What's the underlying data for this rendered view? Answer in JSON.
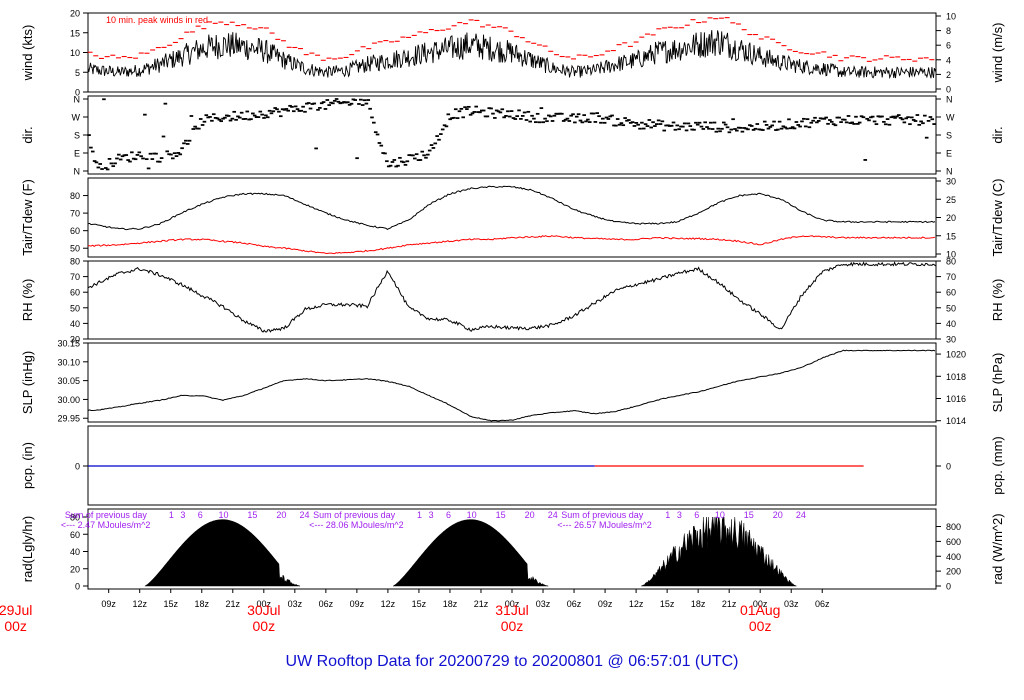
{
  "figure": {
    "title": "UW Rooftop Data for 20200729  to  20200801 @ 06:57:01  (UTC)",
    "title_color": "#1010d0",
    "date_color": "#ff0000",
    "annotation_color": "#a020f0",
    "x_tick_labels": [
      "09z",
      "12z",
      "15z",
      "18z",
      "21z",
      "00z",
      "03z",
      "06z",
      "09z",
      "12z",
      "15z",
      "18z",
      "21z",
      "00z",
      "03z",
      "06z",
      "09z",
      "12z",
      "15z",
      "18z",
      "21z",
      "00z",
      "03z",
      "06z"
    ],
    "date_labels": [
      {
        "day": "29Jul",
        "time": "00z"
      },
      {
        "day": "30Jul",
        "time": "00z"
      },
      {
        "day": "31Jul",
        "time": "00z"
      },
      {
        "day": "01Aug",
        "time": "00z"
      }
    ]
  },
  "chart_data": [
    {
      "type": "line",
      "name": "wind",
      "ylabel": "wind (kts)",
      "ylabel_right": "wind (m/s)",
      "ylim": [
        0,
        20
      ],
      "yticks": [
        0,
        5,
        10,
        15,
        20
      ],
      "yticks_right": [
        "0",
        "2",
        "4",
        "6",
        "8",
        "10"
      ],
      "annotation": "10 min. peak winds in red",
      "series_color": "#000000",
      "peak_color": "#ff0000",
      "x_hours": [
        6,
        8,
        10,
        12,
        14,
        16,
        18,
        20,
        22,
        24,
        26,
        28,
        30,
        32,
        34,
        36,
        38,
        40,
        42,
        44,
        46,
        48,
        50,
        52,
        54,
        56,
        58,
        60,
        62,
        64,
        66,
        68,
        70,
        72,
        74,
        76,
        78,
        80
      ],
      "values": [
        6,
        5.5,
        5,
        5.5,
        7,
        9,
        11,
        12,
        11.5,
        10.5,
        8,
        6,
        5,
        5.5,
        7,
        8,
        9,
        10,
        11,
        12,
        11,
        10,
        8,
        6,
        5,
        5.5,
        7,
        8,
        10,
        11,
        12,
        13,
        11,
        9,
        7.5,
        6.5,
        6,
        5
      ]
    },
    {
      "type": "scatter",
      "name": "dir",
      "ylabel": "dir.",
      "ylabel_right": "dir.",
      "yticks": [
        "N",
        "E",
        "S",
        "W",
        "N"
      ],
      "x_hours": [
        6,
        8,
        10,
        12,
        14,
        16,
        18,
        20,
        22,
        24,
        26,
        28,
        30,
        32,
        34,
        36,
        38,
        40,
        42,
        44,
        46,
        48,
        50,
        52,
        54,
        56,
        58,
        60,
        62,
        64,
        66,
        68,
        70,
        72,
        74,
        76,
        78,
        80
      ],
      "values": [
        340,
        10,
        60,
        80,
        70,
        100,
        250,
        270,
        275,
        290,
        300,
        320,
        330,
        340,
        350,
        30,
        60,
        90,
        280,
        300,
        290,
        285,
        270,
        265,
        260,
        270,
        250,
        240,
        230,
        220,
        225,
        220,
        215,
        220,
        230,
        240,
        250,
        255
      ]
    },
    {
      "type": "line",
      "name": "temperature",
      "ylabel": "Tair/Tdew (F)",
      "ylabel_right": "Tair/Tdew (C)",
      "ylim": [
        45,
        90
      ],
      "yticks": [
        50,
        60,
        70,
        80
      ],
      "yticks_right": [
        "10",
        "15",
        "20",
        "25",
        "30"
      ],
      "x_hours": [
        6,
        8,
        10,
        12,
        14,
        16,
        18,
        20,
        22,
        24,
        26,
        28,
        30,
        32,
        34,
        36,
        38,
        40,
        42,
        44,
        46,
        48,
        50,
        52,
        54,
        56,
        58,
        60,
        62,
        64,
        66,
        68,
        70,
        72,
        74,
        76,
        78,
        80
      ],
      "series": [
        {
          "color": "#000000",
          "values": [
            65,
            63,
            61,
            61,
            64,
            70,
            75,
            79,
            81,
            81,
            80,
            75,
            70,
            66,
            63,
            61,
            66,
            75,
            81,
            84,
            85,
            85,
            83,
            78,
            72,
            68,
            65,
            64,
            64,
            65,
            70,
            76,
            80,
            81,
            78,
            71,
            66,
            65
          ]
        },
        {
          "color": "#ff0000",
          "values": [
            51,
            51.5,
            52,
            53,
            54,
            55,
            55,
            54,
            53,
            51,
            50,
            48.5,
            47,
            47.5,
            48.5,
            50,
            52,
            53,
            54,
            55,
            55,
            56,
            56.5,
            57,
            56,
            55.5,
            55,
            55,
            56,
            55.5,
            55.5,
            55,
            54,
            52,
            55,
            57,
            56.5,
            56
          ]
        }
      ]
    },
    {
      "type": "line",
      "name": "rh",
      "ylabel": "RH (%)",
      "ylabel_right": "RH (%)",
      "ylim": [
        30,
        80
      ],
      "yticks": [
        30,
        40,
        50,
        60,
        70,
        80
      ],
      "x_hours": [
        6,
        8,
        10,
        12,
        14,
        16,
        18,
        20,
        22,
        24,
        26,
        28,
        30,
        32,
        34,
        36,
        38,
        40,
        42,
        44,
        46,
        48,
        50,
        52,
        54,
        56,
        58,
        60,
        62,
        64,
        66,
        68,
        70,
        72,
        74,
        76,
        78,
        80
      ],
      "values": [
        60,
        66,
        72,
        75,
        71,
        65,
        58,
        51,
        42,
        35,
        37,
        49,
        52,
        52,
        51,
        74,
        50,
        43,
        42,
        36,
        38,
        37,
        37,
        39,
        45,
        53,
        61,
        65,
        68,
        72,
        75,
        66,
        55,
        46,
        36,
        58,
        73,
        78
      ]
    },
    {
      "type": "line",
      "name": "slp",
      "ylabel": "SLP (inHg)",
      "ylabel_right": "SLP (hPa)",
      "ylim": [
        29.94,
        30.15
      ],
      "yticks": [
        29.95,
        30.0,
        30.05,
        30.1,
        30.15
      ],
      "yticks_right": [
        "1014",
        "1016",
        "1018",
        "1020"
      ],
      "x_hours": [
        6,
        8,
        10,
        12,
        14,
        16,
        18,
        20,
        22,
        24,
        26,
        28,
        30,
        32,
        34,
        36,
        38,
        40,
        42,
        44,
        46,
        48,
        50,
        52,
        54,
        56,
        58,
        60,
        62,
        64,
        66,
        68,
        70,
        72,
        74,
        76,
        78,
        80
      ],
      "values": [
        29.97,
        29.972,
        29.98,
        29.99,
        29.998,
        30.01,
        30.01,
        29.998,
        30.01,
        30.03,
        30.05,
        30.055,
        30.05,
        30.052,
        30.055,
        30.048,
        30.035,
        30.01,
        29.985,
        29.955,
        29.943,
        29.945,
        29.958,
        29.965,
        29.97,
        29.962,
        29.968,
        29.982,
        29.998,
        30.01,
        30.02,
        30.035,
        30.05,
        30.06,
        30.07,
        30.085,
        30.11,
        30.13
      ]
    },
    {
      "type": "line",
      "name": "pcp",
      "ylabel": "pcp. (in)",
      "ylabel_right": "pcp. (mm)",
      "yticks": [
        "0"
      ],
      "yticks_right": [
        "0"
      ],
      "series": [
        {
          "color": "#0000cc",
          "x_range": [
            0,
            56
          ],
          "value": 0
        },
        {
          "color": "#ff0000",
          "x_range": [
            56,
            82
          ],
          "value": 0
        }
      ]
    },
    {
      "type": "area",
      "name": "rad",
      "ylabel": "rad(Lgly/hr)",
      "ylabel_right": "rad (W/m^2)",
      "ylim": [
        0,
        80
      ],
      "yticks": [
        0,
        20,
        40,
        60,
        80
      ],
      "yticks_right": [
        "0",
        "200",
        "400",
        "600",
        "800"
      ],
      "daily_sums": [
        {
          "line1": "Sum of previous day",
          "line2": "<--- 2.47 MJoules/m^2"
        },
        {
          "line1": "Sum of previous day",
          "line2": "<--- 28.06 MJoules/m^2"
        },
        {
          "line1": "Sum of previous day",
          "line2": "<--- 26.57 MJoules/m^2"
        }
      ],
      "hour_labels": [
        "1",
        "3",
        "6",
        "10",
        "15",
        "20",
        "24"
      ],
      "days": [
        {
          "sunrise": 12.5,
          "sunset": 27.5,
          "peak": 77
        },
        {
          "sunrise": 36.5,
          "sunset": 51.5,
          "peak": 77
        },
        {
          "sunrise": 60.5,
          "sunset": 75.5,
          "peak": 80
        }
      ]
    }
  ]
}
